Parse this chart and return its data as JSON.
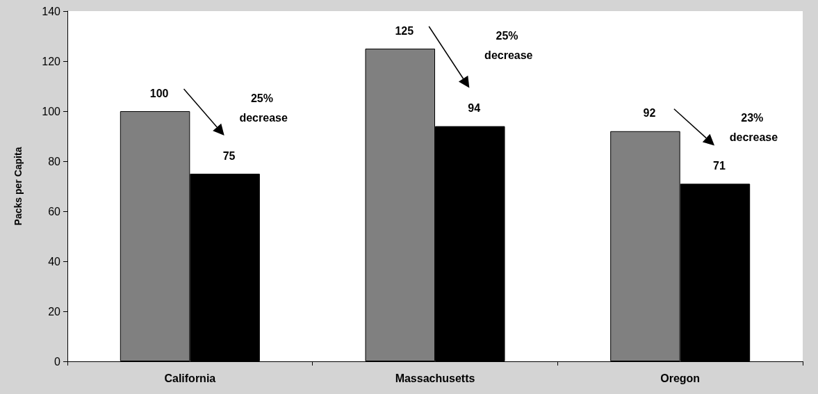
{
  "chart_data": {
    "type": "bar",
    "ylabel": "Packs per Capita",
    "categories": [
      "California",
      "Massachusetts",
      "Oregon"
    ],
    "series": [
      {
        "color": "#808080",
        "values": [
          100,
          125,
          92
        ]
      },
      {
        "color": "#000000",
        "values": [
          75,
          94,
          71
        ]
      }
    ],
    "ylim": [
      0,
      140
    ],
    "yticks": [
      0,
      20,
      40,
      60,
      80,
      100,
      120,
      140
    ],
    "data_labels": true,
    "grid": false,
    "annotations": [
      "25% decrease",
      "25% decrease",
      "23% decrease"
    ]
  }
}
